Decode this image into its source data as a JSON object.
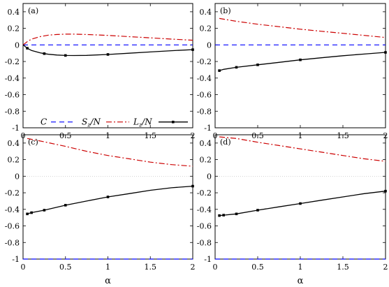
{
  "chart_data": [
    {
      "type": "line",
      "panel_label": "(a)",
      "xlim": [
        0,
        2
      ],
      "ylim": [
        -1,
        0.5
      ],
      "xticks": [
        "0",
        "0.5",
        "1",
        "1.5",
        "2"
      ],
      "yticks": [
        "0.4",
        "0.2",
        "0",
        "-0.2",
        "-0.4",
        "-0.6",
        "-0.8",
        "-1"
      ],
      "show_xticklabels": true,
      "show_yticklabels": true,
      "show_legend": true,
      "series": [
        {
          "name": "C",
          "style": "dashed",
          "color": "#0000ff",
          "x": [
            0,
            0.25,
            0.5,
            0.75,
            1,
            1.25,
            1.5,
            1.75,
            2
          ],
          "y": [
            0,
            0,
            0,
            0,
            0,
            0,
            0,
            0,
            0
          ]
        },
        {
          "name": "Sz/N",
          "style": "dashdot",
          "color": "#cc0000",
          "x": [
            0,
            0.05,
            0.1,
            0.2,
            0.3,
            0.4,
            0.5,
            0.6,
            0.75,
            1,
            1.25,
            1.5,
            1.75,
            2
          ],
          "y": [
            0,
            0.04,
            0.07,
            0.1,
            0.118,
            0.126,
            0.13,
            0.13,
            0.126,
            0.115,
            0.1,
            0.085,
            0.07,
            0.057
          ]
        },
        {
          "name": "Lz/N",
          "style": "solid-markers",
          "color": "#000000",
          "x": [
            0,
            0.05,
            0.1,
            0.2,
            0.25,
            0.3,
            0.4,
            0.5,
            0.6,
            0.75,
            1,
            1.25,
            1.5,
            1.75,
            2
          ],
          "y": [
            0,
            -0.04,
            -0.067,
            -0.095,
            -0.105,
            -0.113,
            -0.122,
            -0.127,
            -0.128,
            -0.126,
            -0.115,
            -0.1,
            -0.085,
            -0.07,
            -0.057
          ],
          "markers_x": [
            0.05,
            0.25,
            0.5,
            1,
            2
          ]
        }
      ]
    },
    {
      "type": "line",
      "panel_label": "(b)",
      "xlim": [
        0,
        2
      ],
      "ylim": [
        -1,
        0.5
      ],
      "xticks": [
        "0",
        "0.5",
        "1",
        "1.5",
        "2"
      ],
      "yticks": [
        "0.4",
        "0.2",
        "0",
        "-0.2",
        "-0.4",
        "-0.6",
        "-0.8",
        "-1"
      ],
      "show_xticklabels": true,
      "show_yticklabels": true,
      "show_legend": false,
      "series": [
        {
          "name": "C",
          "style": "dashed",
          "color": "#0000ff",
          "x": [
            0,
            0.5,
            1,
            1.5,
            2
          ],
          "y": [
            0,
            0,
            0,
            0,
            0
          ]
        },
        {
          "name": "Sz/N",
          "style": "dashdot",
          "color": "#cc0000",
          "x": [
            0.05,
            0.25,
            0.5,
            0.75,
            1,
            1.25,
            1.5,
            1.75,
            2
          ],
          "y": [
            0.32,
            0.285,
            0.25,
            0.22,
            0.19,
            0.165,
            0.14,
            0.115,
            0.09
          ]
        },
        {
          "name": "Lz/N",
          "style": "solid-markers",
          "color": "#000000",
          "x": [
            0.05,
            0.1,
            0.25,
            0.5,
            0.75,
            1,
            1.25,
            1.5,
            1.75,
            2
          ],
          "y": [
            -0.31,
            -0.295,
            -0.27,
            -0.24,
            -0.21,
            -0.18,
            -0.155,
            -0.13,
            -0.11,
            -0.09
          ],
          "markers_x": [
            0.05,
            0.25,
            0.5,
            1,
            2
          ]
        }
      ]
    },
    {
      "type": "line",
      "panel_label": "(c)",
      "xlim": [
        0,
        2
      ],
      "ylim": [
        -1,
        0.5
      ],
      "xticks": [
        "0",
        "0.5",
        "1",
        "1.5",
        "2"
      ],
      "yticks": [
        "0.4",
        "0.2",
        "0",
        "-0.2",
        "-0.4",
        "-0.6",
        "-0.8",
        "-1"
      ],
      "show_xticklabels": true,
      "show_yticklabels": true,
      "show_legend": false,
      "xlabel": "α",
      "series": [
        {
          "name": "C",
          "style": "dashed",
          "color": "#0000ff",
          "x": [
            0,
            0.5,
            1,
            1.5,
            2
          ],
          "y": [
            -1,
            -1,
            -1,
            -1,
            -1
          ]
        },
        {
          "name": "Sz/N",
          "style": "dashdot",
          "color": "#cc0000",
          "x": [
            0.05,
            0.25,
            0.5,
            0.75,
            1,
            1.25,
            1.5,
            1.75,
            2
          ],
          "y": [
            0.455,
            0.415,
            0.36,
            0.3,
            0.25,
            0.21,
            0.17,
            0.14,
            0.12
          ]
        },
        {
          "name": "Lz/N",
          "style": "solid-markers",
          "color": "#000000",
          "x": [
            0.05,
            0.1,
            0.25,
            0.5,
            0.75,
            1,
            1.25,
            1.5,
            1.75,
            2
          ],
          "y": [
            -0.455,
            -0.44,
            -0.41,
            -0.35,
            -0.3,
            -0.25,
            -0.21,
            -0.17,
            -0.14,
            -0.12
          ],
          "markers_x": [
            0.05,
            0.1,
            0.25,
            0.5,
            1,
            2
          ]
        }
      ]
    },
    {
      "type": "line",
      "panel_label": "(d)",
      "xlim": [
        0,
        2
      ],
      "ylim": [
        -1,
        0.5
      ],
      "xticks": [
        "0",
        "0.5",
        "1",
        "1.5",
        "2"
      ],
      "yticks": [
        "0.4",
        "0.2",
        "0",
        "-0.2",
        "-0.4",
        "-0.6",
        "-0.8",
        "-1"
      ],
      "show_xticklabels": true,
      "show_yticklabels": true,
      "show_legend": false,
      "xlabel": "α",
      "series": [
        {
          "name": "C",
          "style": "dashed",
          "color": "#0000ff",
          "x": [
            0,
            0.5,
            1,
            1.5,
            2
          ],
          "y": [
            -1,
            -1,
            -1,
            -1,
            -1
          ]
        },
        {
          "name": "Sz/N",
          "style": "dashdot",
          "color": "#cc0000",
          "x": [
            0.05,
            0.25,
            0.5,
            0.75,
            1,
            1.25,
            1.5,
            1.75,
            2
          ],
          "y": [
            0.475,
            0.455,
            0.41,
            0.37,
            0.33,
            0.29,
            0.25,
            0.21,
            0.18
          ]
        },
        {
          "name": "Lz/N",
          "style": "solid-markers",
          "color": "#000000",
          "x": [
            0.05,
            0.1,
            0.25,
            0.5,
            0.75,
            1,
            1.25,
            1.5,
            1.75,
            2
          ],
          "y": [
            -0.475,
            -0.47,
            -0.455,
            -0.41,
            -0.37,
            -0.33,
            -0.29,
            -0.25,
            -0.21,
            -0.18
          ],
          "markers_x": [
            0.05,
            0.1,
            0.25,
            0.5,
            1,
            2
          ]
        }
      ]
    }
  ],
  "legend": {
    "entries": [
      {
        "label": "C",
        "color": "#0000ff",
        "style": "dashed"
      },
      {
        "label_main": "S",
        "label_sub": "z",
        "label_tail": "/N",
        "color": "#cc0000",
        "style": "dashdot"
      },
      {
        "label_main": "L",
        "label_sub": "z",
        "label_tail": "/N",
        "color": "#000000",
        "style": "solid-markers"
      }
    ]
  },
  "grid": false
}
